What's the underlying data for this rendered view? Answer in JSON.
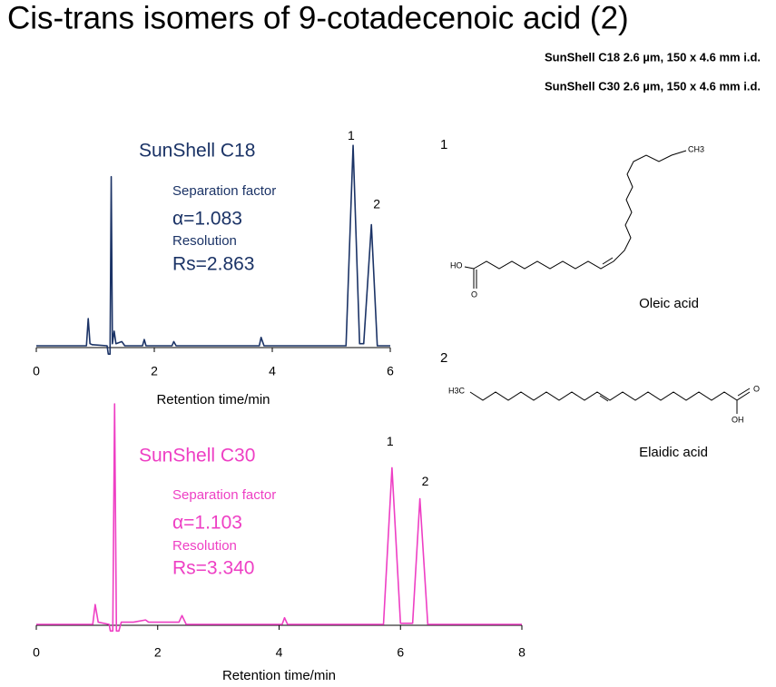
{
  "header": {
    "title": "Cis-trans isomers of 9-cotadecenoic acid (2)",
    "columns": [
      "SunShell  C18  2.6 µm, 150 x 4.6 mm i.d.",
      "SunShell  C30  2.6 µm, 150 x 4.6 mm i.d."
    ]
  },
  "chart_data": [
    {
      "type": "line",
      "xlabel": "Retention time/min",
      "xlim": [
        0,
        6
      ],
      "xticks": [
        0,
        2,
        4,
        6
      ],
      "ylim": [
        -5,
        100
      ],
      "annotations": {
        "column": "SunShell C18",
        "separation_label": "Separation factor",
        "alpha": "α=1.083",
        "resolution_label": "Resolution",
        "rs": "Rs=2.863",
        "peaks": [
          "1",
          "2"
        ]
      },
      "series": [
        {
          "name": "SunShell C18",
          "color": "#1b3366",
          "x": [
            0,
            0.85,
            0.88,
            0.91,
            0.95,
            1.2,
            1.22,
            1.25,
            1.27,
            1.29,
            1.32,
            1.35,
            1.45,
            1.5,
            1.8,
            1.83,
            1.86,
            2.3,
            2.33,
            2.37,
            3.78,
            3.81,
            3.86,
            5.25,
            5.37,
            5.48,
            5.55,
            5.68,
            5.78,
            6
          ],
          "values": [
            0,
            0,
            13,
            1,
            0.5,
            0,
            -4,
            -4,
            81,
            1,
            7,
            1,
            2,
            0,
            0,
            3,
            0,
            0,
            2,
            0,
            0,
            4,
            0,
            0,
            96,
            1,
            1,
            58,
            0,
            0
          ]
        }
      ]
    },
    {
      "type": "line",
      "xlabel": "Retention time/min",
      "xlim": [
        0,
        8
      ],
      "xticks": [
        0,
        2,
        4,
        6,
        8
      ],
      "ylim": [
        -5,
        100
      ],
      "annotations": {
        "column": "SunShell C30",
        "separation_label": "Separation factor",
        "alpha": "α=1.103",
        "resolution_label": "Resolution",
        "rs": "Rs=3.340",
        "peaks": [
          "1",
          "2"
        ]
      },
      "series": [
        {
          "name": "SunShell C30",
          "color": "#ee3fc4",
          "x": [
            0,
            0.93,
            0.97,
            1.02,
            1.2,
            1.22,
            1.26,
            1.29,
            1.32,
            1.36,
            1.4,
            1.6,
            1.8,
            1.85,
            2.35,
            2.4,
            2.47,
            4.05,
            4.09,
            4.14,
            5.72,
            5.86,
            6.0,
            6.2,
            6.32,
            6.45,
            8
          ],
          "values": [
            0,
            0,
            9,
            1,
            0,
            -3,
            -3,
            100,
            -3,
            -3,
            1,
            1,
            2,
            1,
            1,
            4,
            0,
            0,
            3,
            0,
            0,
            71,
            0.5,
            0.5,
            57,
            0,
            0
          ]
        }
      ]
    }
  ],
  "structures": [
    {
      "number": "1",
      "name": "Oleic acid",
      "atoms": [
        "CH3",
        "HO",
        "O"
      ]
    },
    {
      "number": "2",
      "name": "Elaidic acid",
      "atoms": [
        "H3C",
        "O",
        "OH"
      ]
    }
  ]
}
